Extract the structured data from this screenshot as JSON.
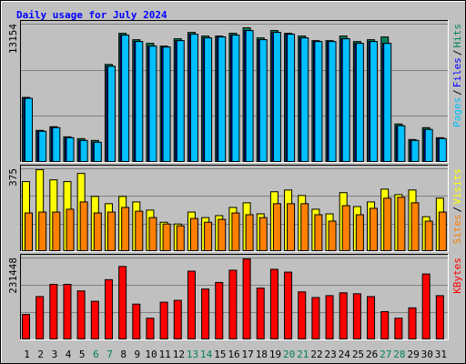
{
  "chart_data": {
    "title": "Daily usage for July 2024",
    "title_color": "#0000ff",
    "background": "#c0c0c0",
    "categories": [
      "1",
      "2",
      "3",
      "4",
      "5",
      "6",
      "7",
      "8",
      "9",
      "10",
      "11",
      "12",
      "13",
      "14",
      "15",
      "16",
      "17",
      "18",
      "19",
      "20",
      "21",
      "22",
      "23",
      "24",
      "25",
      "26",
      "27",
      "28",
      "29",
      "30",
      "31"
    ],
    "category_colors": [
      "#000000",
      "#000000",
      "#000000",
      "#000000",
      "#000000",
      "#00805c",
      "#00805c",
      "#000000",
      "#000000",
      "#000000",
      "#000000",
      "#000000",
      "#00805c",
      "#00805c",
      "#000000",
      "#000000",
      "#000000",
      "#000000",
      "#000000",
      "#00805c",
      "#00805c",
      "#000000",
      "#000000",
      "#000000",
      "#000000",
      "#000000",
      "#00805c",
      "#00805c",
      "#000000",
      "#000000",
      "#000000"
    ],
    "legend_separator": "/",
    "grid_divisions": 3,
    "panels": [
      {
        "type": "bar",
        "ylim": [
          0,
          13154
        ],
        "yticks": [
          13154
        ],
        "series": [
          {
            "name": "Hits",
            "color": "#00805c",
            "values": [
              6184,
              3049,
              3397,
              2439,
              2265,
              2090,
              9320,
              12281,
              11671,
              11323,
              11062,
              11759,
              12368,
              12020,
              12020,
              12281,
              12804,
              11846,
              12542,
              12281,
              12020,
              11584,
              11584,
              12020,
              11497,
              11671,
              11933,
              3658,
              2178,
              3310,
              2352
            ]
          },
          {
            "name": "Files",
            "color": "#0000ff",
            "values": [
              6097,
              2962,
              3310,
              2352,
              2090,
              1916,
              9146,
              12107,
              11497,
              11062,
              10975,
              11584,
              12194,
              11846,
              11933,
              12107,
              12542,
              11671,
              12368,
              12194,
              11846,
              11497,
              11497,
              11759,
              11323,
              11497,
              11323,
              3484,
              2090,
              3136,
              2265
            ]
          },
          {
            "name": "Pages",
            "color": "#00c0ff",
            "values": [
              6097,
              2962,
              3310,
              2352,
              2090,
              1916,
              9146,
              12107,
              11497,
              11062,
              10975,
              11584,
              12194,
              11846,
              11933,
              12107,
              12542,
              11671,
              12368,
              12194,
              11846,
              11497,
              11497,
              11759,
              11323,
              11497,
              11323,
              3484,
              2090,
              3136,
              2265
            ]
          }
        ]
      },
      {
        "type": "bar",
        "ylim": [
          0,
          375
        ],
        "yticks": [
          375
        ],
        "series": [
          {
            "name": "Visits",
            "color": "#ffff00",
            "values": [
              317,
              371,
              325,
              317,
              354,
              250,
              217,
              250,
              225,
              188,
              133,
              125,
              179,
              154,
              163,
              200,
              221,
              171,
              271,
              279,
              254,
              192,
              171,
              267,
              204,
              225,
              283,
              258,
              279,
              158,
              242
            ]
          },
          {
            "name": "Sites",
            "color": "#ff8000",
            "values": [
              175,
              179,
              179,
              192,
              225,
              175,
              179,
              200,
              183,
              154,
              125,
              117,
              150,
              133,
              146,
              175,
              167,
              154,
              217,
              217,
              217,
              167,
              138,
              208,
              167,
              196,
              242,
              246,
              221,
              138,
              179
            ]
          }
        ]
      },
      {
        "type": "bar",
        "ylim": [
          0,
          231448
        ],
        "yticks": [
          231448
        ],
        "series": [
          {
            "name": "KBytes",
            "color": "#ff0000",
            "values": [
              71820,
              122360,
              156940,
              156940,
              138320,
              109060,
              170240,
              207480,
              101080,
              61180,
              106400,
              111720,
              194180,
              143640,
              162260,
              196840,
              228760,
              146300,
              199500,
              191520,
              135660,
              119700,
              125020,
              133000,
              130340,
              122360,
              79800,
              61180,
              90440,
              186200,
              125020
            ]
          }
        ]
      }
    ]
  }
}
